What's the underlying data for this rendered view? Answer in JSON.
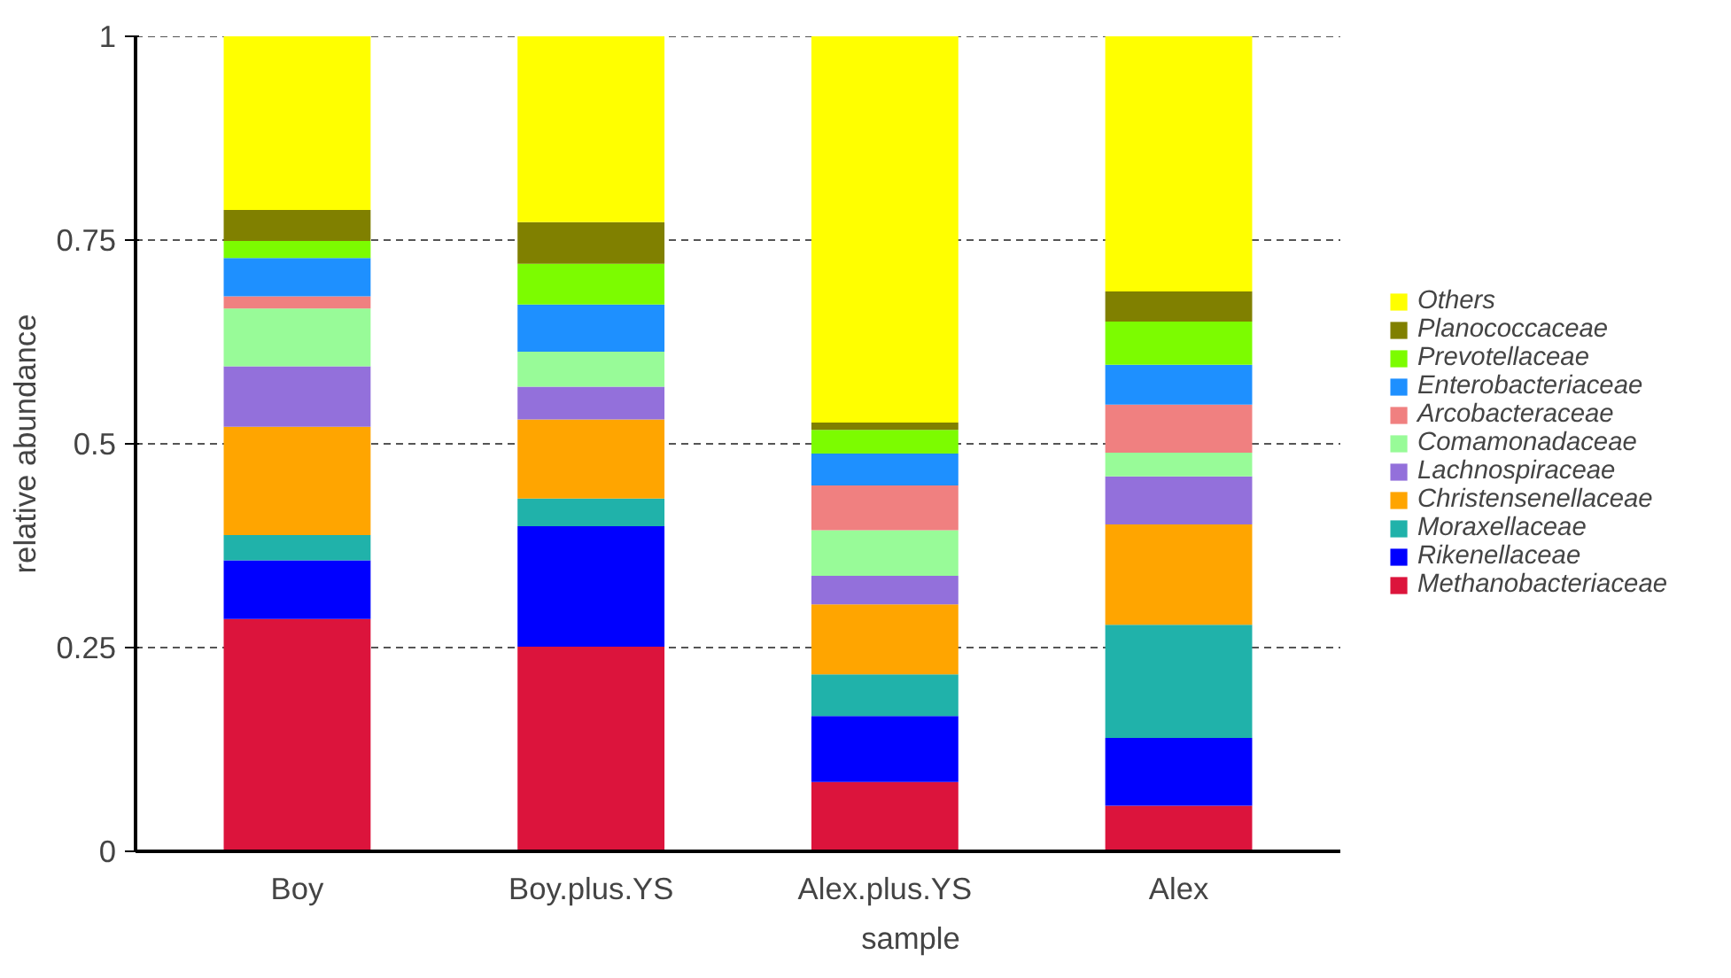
{
  "chart_data": {
    "type": "bar",
    "stacked": true,
    "xlabel": "sample",
    "ylabel": "relative abundance",
    "categories": [
      "Boy",
      "Boy.plus.YS",
      "Alex.plus.YS",
      "Alex"
    ],
    "ylim": [
      0,
      1
    ],
    "yticks": [
      0,
      0.25,
      0.5,
      0.75,
      1
    ],
    "grid": "y",
    "legend": "right",
    "series": [
      {
        "name": "Methanobacteriaceae",
        "color": "#dc143c",
        "values": [
          0.285,
          0.251,
          0.085,
          0.056
        ]
      },
      {
        "name": "Rikenellaceae",
        "color": "#0000ff",
        "values": [
          0.072,
          0.148,
          0.081,
          0.083
        ]
      },
      {
        "name": "Moraxellaceae",
        "color": "#20b2aa",
        "values": [
          0.031,
          0.034,
          0.051,
          0.139
        ]
      },
      {
        "name": "Christensenellaceae",
        "color": "#ffa500",
        "values": [
          0.133,
          0.097,
          0.086,
          0.123
        ]
      },
      {
        "name": "Lachnospiraceae",
        "color": "#9370db",
        "values": [
          0.074,
          0.04,
          0.035,
          0.059
        ]
      },
      {
        "name": "Comamonadaceae",
        "color": "#98fb98",
        "values": [
          0.071,
          0.043,
          0.056,
          0.029
        ]
      },
      {
        "name": "Arcobacteraceae",
        "color": "#f08080",
        "values": [
          0.015,
          0,
          0.055,
          0.059
        ]
      },
      {
        "name": "Enterobacteriaceae",
        "color": "#1e90ff",
        "values": [
          0.047,
          0.058,
          0.039,
          0.049
        ]
      },
      {
        "name": "Prevotellaceae",
        "color": "#7cfc00",
        "values": [
          0.021,
          0.05,
          0.029,
          0.053
        ]
      },
      {
        "name": "Planococcaceae",
        "color": "#808000",
        "values": [
          0.038,
          0.051,
          0.009,
          0.037
        ]
      },
      {
        "name": "Others",
        "color": "#ffff00",
        "values": [
          0.213,
          0.228,
          0.474,
          0.313
        ]
      }
    ]
  }
}
